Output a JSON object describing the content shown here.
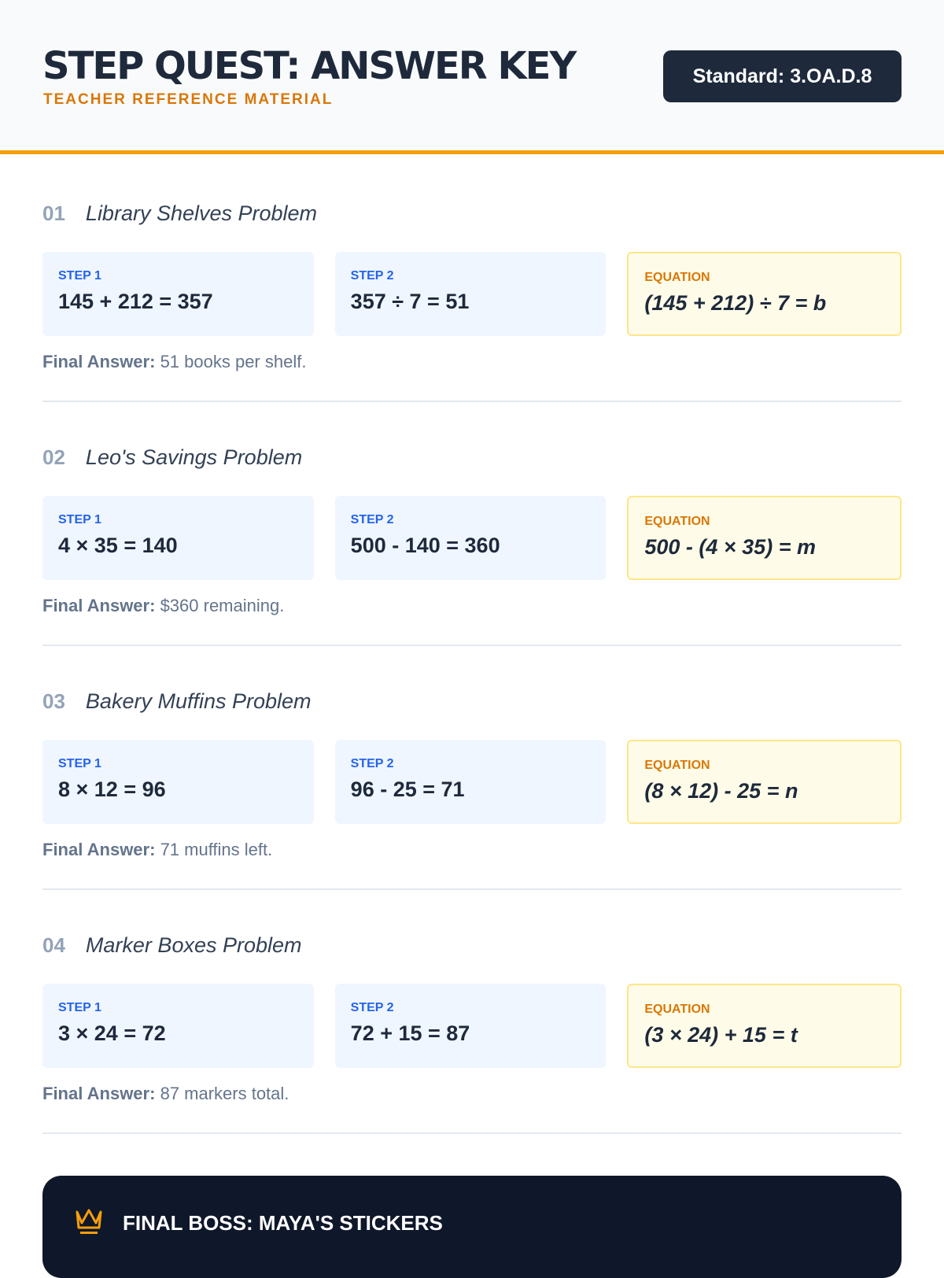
{
  "header": {
    "title": "STEP QUEST: ANSWER KEY",
    "subtitle": "TEACHER REFERENCE MATERIAL",
    "standard": "Standard: 3.OA.D.8"
  },
  "labels": {
    "step1": "STEP 1",
    "step2": "STEP 2",
    "equation": "EQUATION",
    "final_answer": "Final Answer:"
  },
  "problems": [
    {
      "number": "01",
      "title": "Library Shelves Problem",
      "step1": "145 + 212 = 357",
      "step2": "357 ÷ 7 = 51",
      "equation": "(145 + 212) ÷ 7 = b",
      "answer": "51 books per shelf."
    },
    {
      "number": "02",
      "title": "Leo's Savings Problem",
      "step1": "4 × 35 = 140",
      "step2": "500 - 140 = 360",
      "equation": "500 - (4 × 35) = m",
      "answer": "$360 remaining."
    },
    {
      "number": "03",
      "title": "Bakery Muffins Problem",
      "step1": "8 × 12 = 96",
      "step2": "96 - 25 = 71",
      "equation": "(8 × 12) - 25 = n",
      "answer": "71 muffins left."
    },
    {
      "number": "04",
      "title": "Marker Boxes Problem",
      "step1": "3 × 24 = 72",
      "step2": "72 + 15 = 87",
      "equation": "(3 × 24) + 15 = t",
      "answer": "87 markers total."
    }
  ],
  "boss": {
    "icon": "crown-icon",
    "title": "FINAL BOSS: MAYA'S STICKERS"
  }
}
